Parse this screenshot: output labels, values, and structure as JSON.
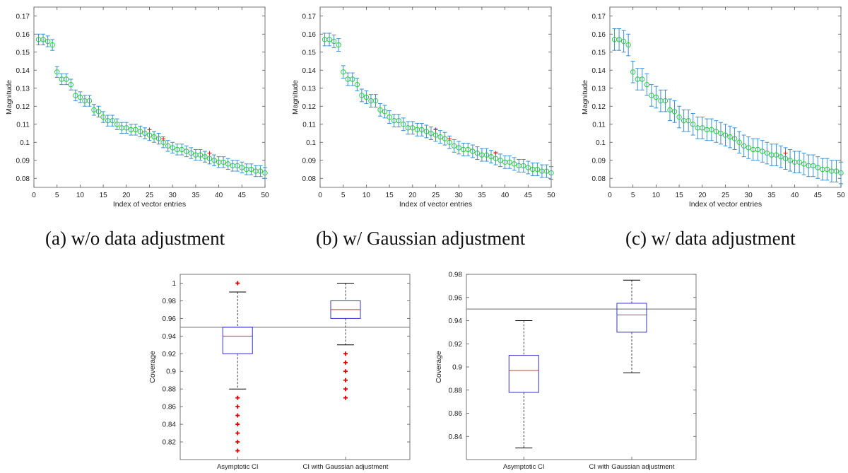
{
  "captions": {
    "a": "(a) w/o data adjustment",
    "b": "(b) w/ Gaussian adjustment",
    "c": "(c) w/ data adjustment"
  },
  "colors": {
    "errorbar": "#3a8fd0",
    "marker": "#2ecc40",
    "true_marker": "#d62728",
    "box": "#3333cc",
    "median": "#e03030",
    "outlier": "#dd0000",
    "whisker_cap": "#000000",
    "reference_line": "#888888"
  },
  "chart_data": [
    {
      "id": "a",
      "type": "scatter",
      "subtype": "errorbar",
      "xlabel": "Index of vector entries",
      "ylabel": "Magnitude",
      "xlim": [
        0,
        50
      ],
      "ylim": [
        0.075,
        0.175
      ],
      "xticks": [
        "0",
        "5",
        "10",
        "15",
        "20",
        "25",
        "30",
        "35",
        "40",
        "45",
        "50"
      ],
      "yticks": [
        "0.08",
        "0.09",
        "0.1",
        "0.11",
        "0.12",
        "0.13",
        "0.14",
        "0.15",
        "0.16",
        "0.17"
      ],
      "x": [
        1,
        2,
        3,
        4,
        5,
        6,
        7,
        8,
        9,
        10,
        11,
        12,
        13,
        14,
        15,
        16,
        17,
        18,
        19,
        20,
        21,
        22,
        23,
        24,
        25,
        26,
        27,
        28,
        29,
        30,
        31,
        32,
        33,
        34,
        35,
        36,
        37,
        38,
        39,
        40,
        41,
        42,
        43,
        44,
        45,
        46,
        47,
        48,
        49,
        50
      ],
      "y": [
        0.157,
        0.157,
        0.156,
        0.154,
        0.139,
        0.135,
        0.135,
        0.132,
        0.126,
        0.125,
        0.123,
        0.123,
        0.118,
        0.117,
        0.114,
        0.112,
        0.112,
        0.11,
        0.108,
        0.108,
        0.107,
        0.107,
        0.106,
        0.105,
        0.104,
        0.103,
        0.102,
        0.1,
        0.098,
        0.097,
        0.096,
        0.096,
        0.095,
        0.094,
        0.093,
        0.093,
        0.092,
        0.091,
        0.09,
        0.089,
        0.089,
        0.088,
        0.087,
        0.087,
        0.086,
        0.085,
        0.085,
        0.084,
        0.084,
        0.083
      ],
      "err": 0.003,
      "true_markers": [
        {
          "x": 25,
          "y": 0.107
        },
        {
          "x": 28,
          "y": 0.102
        },
        {
          "x": 38,
          "y": 0.094
        }
      ]
    },
    {
      "id": "b",
      "type": "scatter",
      "subtype": "errorbar",
      "xlabel": "Index of vector entries",
      "ylabel": "Magnitude",
      "xlim": [
        0,
        50
      ],
      "ylim": [
        0.075,
        0.175
      ],
      "xticks": [
        "0",
        "5",
        "10",
        "15",
        "20",
        "25",
        "30",
        "35",
        "40",
        "45",
        "50"
      ],
      "yticks": [
        "0.08",
        "0.09",
        "0.1",
        "0.11",
        "0.12",
        "0.13",
        "0.14",
        "0.15",
        "0.16",
        "0.17"
      ],
      "x": [
        1,
        2,
        3,
        4,
        5,
        6,
        7,
        8,
        9,
        10,
        11,
        12,
        13,
        14,
        15,
        16,
        17,
        18,
        19,
        20,
        21,
        22,
        23,
        24,
        25,
        26,
        27,
        28,
        29,
        30,
        31,
        32,
        33,
        34,
        35,
        36,
        37,
        38,
        39,
        40,
        41,
        42,
        43,
        44,
        45,
        46,
        47,
        48,
        49,
        50
      ],
      "y": [
        0.157,
        0.157,
        0.156,
        0.154,
        0.139,
        0.135,
        0.135,
        0.132,
        0.126,
        0.125,
        0.123,
        0.123,
        0.118,
        0.117,
        0.114,
        0.112,
        0.112,
        0.11,
        0.108,
        0.108,
        0.107,
        0.107,
        0.106,
        0.105,
        0.104,
        0.103,
        0.102,
        0.1,
        0.098,
        0.097,
        0.096,
        0.096,
        0.095,
        0.094,
        0.093,
        0.093,
        0.092,
        0.091,
        0.09,
        0.089,
        0.089,
        0.088,
        0.087,
        0.087,
        0.086,
        0.085,
        0.085,
        0.084,
        0.084,
        0.083
      ],
      "err": 0.0035,
      "true_markers": [
        {
          "x": 25,
          "y": 0.107
        },
        {
          "x": 28,
          "y": 0.102
        },
        {
          "x": 38,
          "y": 0.094
        }
      ]
    },
    {
      "id": "c",
      "type": "scatter",
      "subtype": "errorbar",
      "xlabel": "Index of vector entries",
      "ylabel": "Magnitude",
      "xlim": [
        0,
        50
      ],
      "ylim": [
        0.075,
        0.175
      ],
      "xticks": [
        "0",
        "5",
        "10",
        "15",
        "20",
        "25",
        "30",
        "35",
        "40",
        "45",
        "50"
      ],
      "yticks": [
        "0.08",
        "0.09",
        "0.1",
        "0.11",
        "0.12",
        "0.13",
        "0.14",
        "0.15",
        "0.16",
        "0.17"
      ],
      "x": [
        1,
        2,
        3,
        4,
        5,
        6,
        7,
        8,
        9,
        10,
        11,
        12,
        13,
        14,
        15,
        16,
        17,
        18,
        19,
        20,
        21,
        22,
        23,
        24,
        25,
        26,
        27,
        28,
        29,
        30,
        31,
        32,
        33,
        34,
        35,
        36,
        37,
        38,
        39,
        40,
        41,
        42,
        43,
        44,
        45,
        46,
        47,
        48,
        49,
        50
      ],
      "y": [
        0.157,
        0.157,
        0.156,
        0.154,
        0.139,
        0.135,
        0.135,
        0.132,
        0.126,
        0.125,
        0.123,
        0.123,
        0.118,
        0.117,
        0.114,
        0.112,
        0.112,
        0.11,
        0.108,
        0.108,
        0.107,
        0.107,
        0.106,
        0.105,
        0.104,
        0.103,
        0.102,
        0.1,
        0.098,
        0.097,
        0.096,
        0.096,
        0.095,
        0.094,
        0.093,
        0.093,
        0.092,
        0.091,
        0.09,
        0.089,
        0.089,
        0.088,
        0.087,
        0.087,
        0.086,
        0.085,
        0.085,
        0.084,
        0.084,
        0.083
      ],
      "err": 0.006,
      "true_markers": [
        {
          "x": 38,
          "y": 0.094
        }
      ]
    },
    {
      "id": "d",
      "type": "box",
      "ylabel": "Coverage",
      "ylim": [
        0.8,
        1.01
      ],
      "yticks": [
        "0.82",
        "0.84",
        "0.86",
        "0.88",
        "0.9",
        "0.92",
        "0.94",
        "0.96",
        "0.98",
        "1"
      ],
      "reference_line": 0.95,
      "categories": [
        "Asymptotic CI",
        "CI with Gaussian adjustment"
      ],
      "boxes": [
        {
          "q1": 0.92,
          "median": 0.94,
          "q3": 0.95,
          "whisker_low": 0.88,
          "whisker_high": 0.99,
          "outliers": [
            1.0,
            0.87,
            0.86,
            0.85,
            0.84,
            0.83,
            0.82,
            0.81
          ]
        },
        {
          "q1": 0.96,
          "median": 0.97,
          "q3": 0.98,
          "whisker_low": 0.93,
          "whisker_high": 1.0,
          "outliers": [
            0.92,
            0.91,
            0.9,
            0.89,
            0.88,
            0.87
          ]
        }
      ]
    },
    {
      "id": "e",
      "type": "box",
      "ylabel": "Coverage",
      "ylim": [
        0.82,
        0.98
      ],
      "yticks": [
        "0.84",
        "0.86",
        "0.88",
        "0.9",
        "0.92",
        "0.94",
        "0.96",
        "0.98"
      ],
      "reference_line": 0.95,
      "categories": [
        "Asymptotic CI",
        "CI with Gaussian adjustment"
      ],
      "boxes": [
        {
          "q1": 0.878,
          "median": 0.897,
          "q3": 0.91,
          "whisker_low": 0.83,
          "whisker_high": 0.94,
          "outliers": []
        },
        {
          "q1": 0.93,
          "median": 0.945,
          "q3": 0.955,
          "whisker_low": 0.895,
          "whisker_high": 0.975,
          "outliers": []
        }
      ]
    }
  ]
}
